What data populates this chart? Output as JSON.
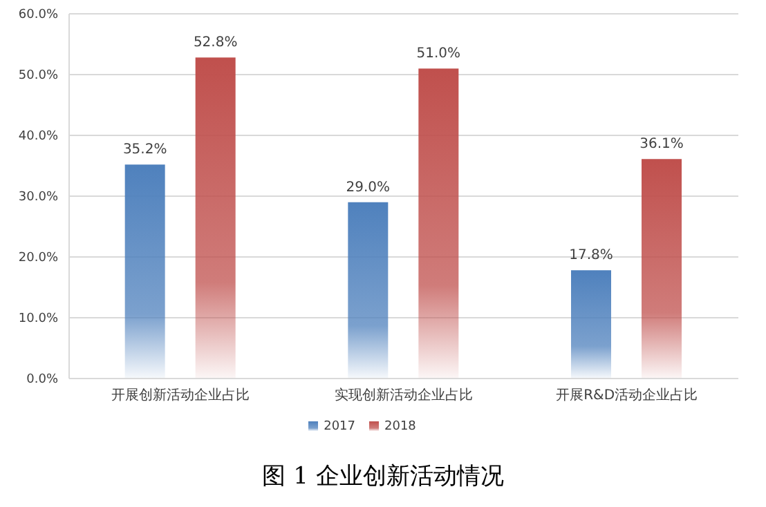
{
  "chart_data": {
    "type": "bar",
    "title": "图 1 企业创新活动情况",
    "categories": [
      "开展创新活动企业占比",
      "实现创新活动企业占比",
      "开展R&D活动企业占比"
    ],
    "series": [
      {
        "name": "2017",
        "color": "#4f81bd",
        "values": [
          35.2,
          29.0,
          17.8
        ],
        "value_labels": [
          "35.2%",
          "29.0%",
          "17.8%"
        ]
      },
      {
        "name": "2018",
        "color": "#c0504d",
        "values": [
          52.8,
          51.0,
          36.1
        ],
        "value_labels": [
          "52.8%",
          "51.0%",
          "36.1%"
        ]
      }
    ],
    "ylim": [
      0,
      60
    ],
    "yticks": [
      {
        "value": 0,
        "label": "0.0%"
      },
      {
        "value": 10,
        "label": "10.0%"
      },
      {
        "value": 20,
        "label": "20.0%"
      },
      {
        "value": 30,
        "label": "30.0%"
      },
      {
        "value": 40,
        "label": "40.0%"
      },
      {
        "value": 50,
        "label": "50.0%"
      },
      {
        "value": 60,
        "label": "60.0%"
      }
    ],
    "grid": "y",
    "legend": "bottom"
  }
}
